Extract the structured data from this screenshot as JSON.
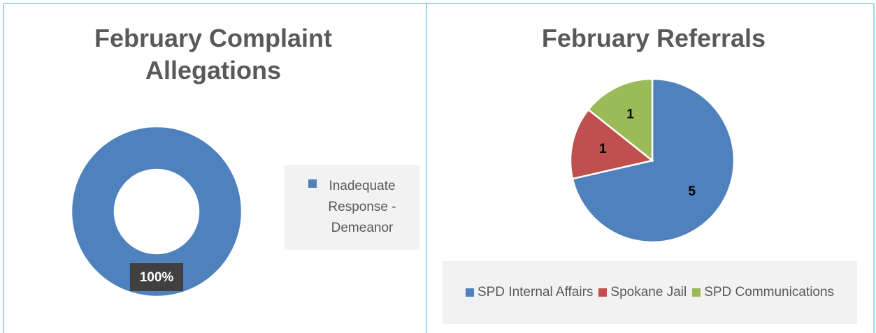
{
  "chart_data": [
    {
      "type": "doughnut",
      "title": "February Complaint Allegations",
      "categories": [
        "Inadequate Response - Demeanor"
      ],
      "values": [
        100
      ],
      "value_labels": [
        "100%"
      ],
      "colors": [
        "#4f81bd"
      ],
      "legend": "right"
    },
    {
      "type": "pie",
      "title": "February Referrals",
      "categories": [
        "SPD Internal Affairs",
        "Spokane Jail",
        "SPD Communications"
      ],
      "values": [
        5,
        1,
        1
      ],
      "colors": [
        "#4f81bd",
        "#c0504d",
        "#9bbb59"
      ],
      "legend": "bottom"
    }
  ]
}
